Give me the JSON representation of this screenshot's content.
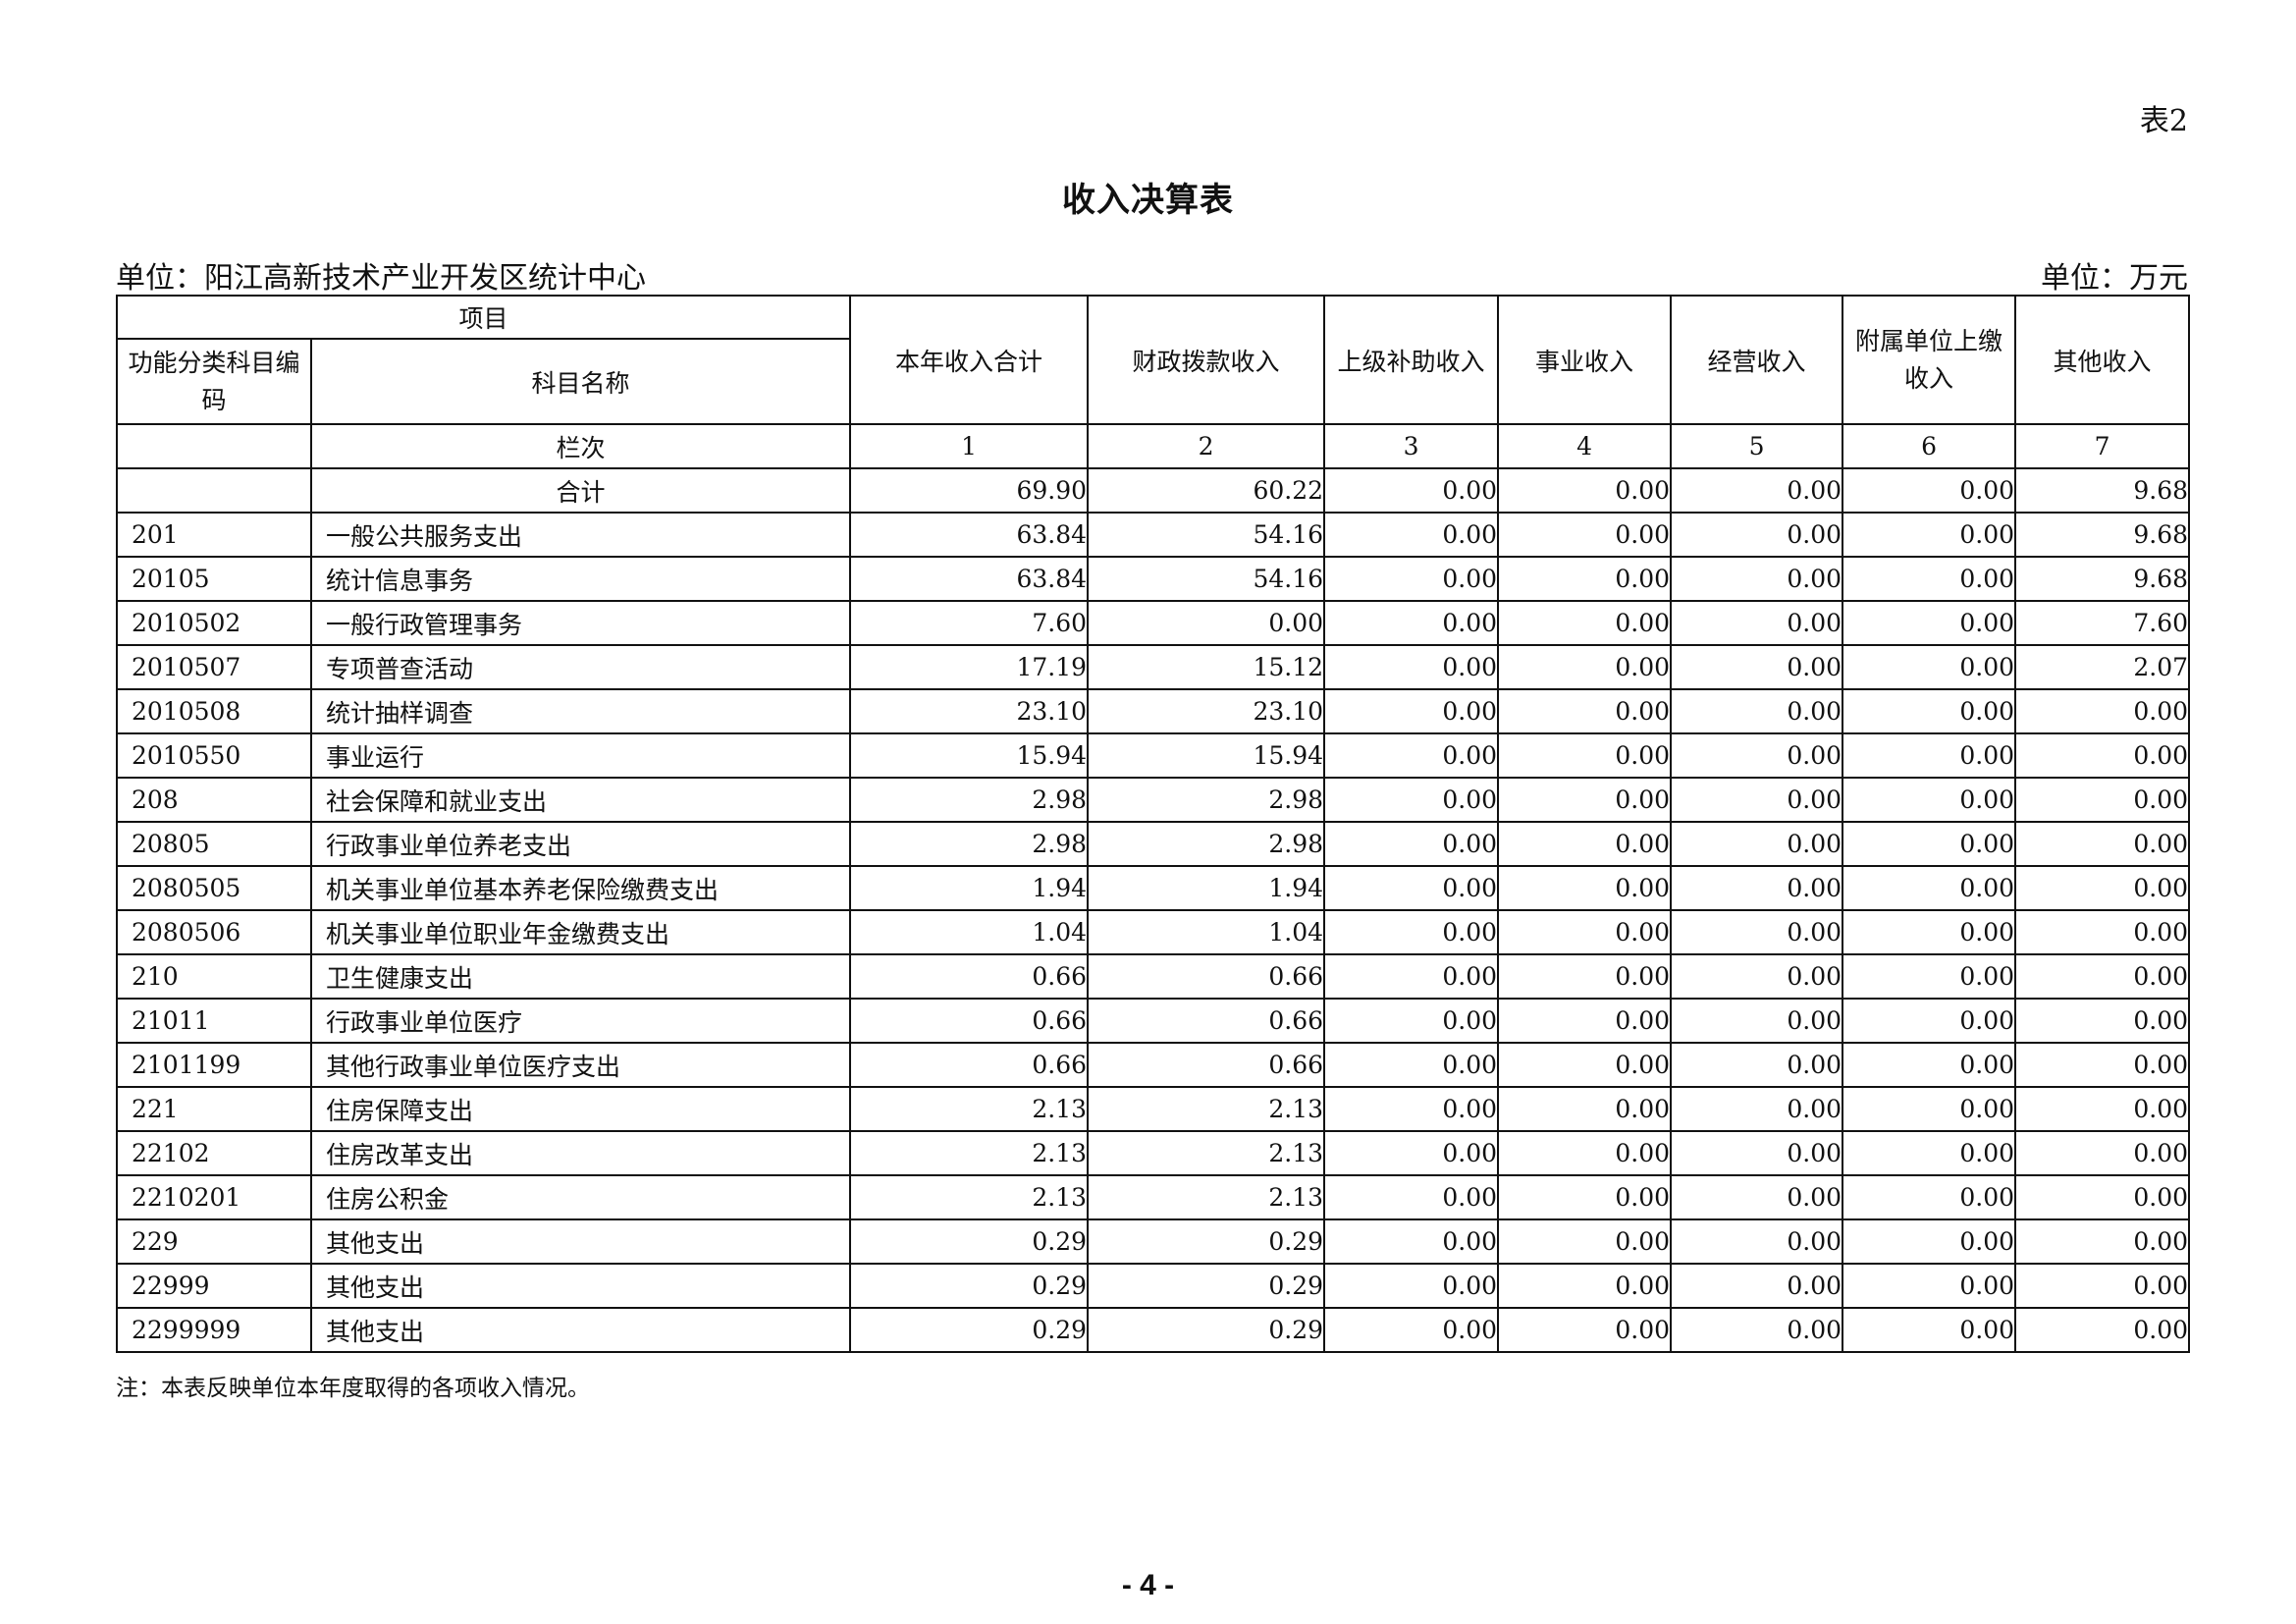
{
  "table_no": "表2",
  "title": "收入决算表",
  "unit_left": "单位：阳江高新技术产业开发区统计中心",
  "unit_right": "单位：万元",
  "header": {
    "item": "项目",
    "code": "功能分类科目编码",
    "name": "科目名称",
    "columns": [
      "本年收入合计",
      "财政拨款收入",
      "上级补助收入",
      "事业收入",
      "经营收入",
      "附属单位上缴收入",
      "其他收入"
    ],
    "index_label": "栏次",
    "index": [
      "1",
      "2",
      "3",
      "4",
      "5",
      "6",
      "7"
    ]
  },
  "total": {
    "label": "合计",
    "values": [
      "69.90",
      "60.22",
      "0.00",
      "0.00",
      "0.00",
      "0.00",
      "9.68"
    ]
  },
  "rows": [
    {
      "code": "201",
      "name": "一般公共服务支出",
      "values": [
        "63.84",
        "54.16",
        "0.00",
        "0.00",
        "0.00",
        "0.00",
        "9.68"
      ]
    },
    {
      "code": "20105",
      "name": "统计信息事务",
      "values": [
        "63.84",
        "54.16",
        "0.00",
        "0.00",
        "0.00",
        "0.00",
        "9.68"
      ]
    },
    {
      "code": "2010502",
      "name": "一般行政管理事务",
      "values": [
        "7.60",
        "0.00",
        "0.00",
        "0.00",
        "0.00",
        "0.00",
        "7.60"
      ]
    },
    {
      "code": "2010507",
      "name": "专项普查活动",
      "values": [
        "17.19",
        "15.12",
        "0.00",
        "0.00",
        "0.00",
        "0.00",
        "2.07"
      ]
    },
    {
      "code": "2010508",
      "name": "统计抽样调查",
      "values": [
        "23.10",
        "23.10",
        "0.00",
        "0.00",
        "0.00",
        "0.00",
        "0.00"
      ]
    },
    {
      "code": "2010550",
      "name": "事业运行",
      "values": [
        "15.94",
        "15.94",
        "0.00",
        "0.00",
        "0.00",
        "0.00",
        "0.00"
      ]
    },
    {
      "code": "208",
      "name": "社会保障和就业支出",
      "values": [
        "2.98",
        "2.98",
        "0.00",
        "0.00",
        "0.00",
        "0.00",
        "0.00"
      ]
    },
    {
      "code": "20805",
      "name": "行政事业单位养老支出",
      "values": [
        "2.98",
        "2.98",
        "0.00",
        "0.00",
        "0.00",
        "0.00",
        "0.00"
      ]
    },
    {
      "code": "2080505",
      "name": "机关事业单位基本养老保险缴费支出",
      "values": [
        "1.94",
        "1.94",
        "0.00",
        "0.00",
        "0.00",
        "0.00",
        "0.00"
      ]
    },
    {
      "code": "2080506",
      "name": "机关事业单位职业年金缴费支出",
      "values": [
        "1.04",
        "1.04",
        "0.00",
        "0.00",
        "0.00",
        "0.00",
        "0.00"
      ]
    },
    {
      "code": "210",
      "name": "卫生健康支出",
      "values": [
        "0.66",
        "0.66",
        "0.00",
        "0.00",
        "0.00",
        "0.00",
        "0.00"
      ]
    },
    {
      "code": "21011",
      "name": "行政事业单位医疗",
      "values": [
        "0.66",
        "0.66",
        "0.00",
        "0.00",
        "0.00",
        "0.00",
        "0.00"
      ]
    },
    {
      "code": "2101199",
      "name": "其他行政事业单位医疗支出",
      "values": [
        "0.66",
        "0.66",
        "0.00",
        "0.00",
        "0.00",
        "0.00",
        "0.00"
      ]
    },
    {
      "code": "221",
      "name": "住房保障支出",
      "values": [
        "2.13",
        "2.13",
        "0.00",
        "0.00",
        "0.00",
        "0.00",
        "0.00"
      ]
    },
    {
      "code": "22102",
      "name": "住房改革支出",
      "values": [
        "2.13",
        "2.13",
        "0.00",
        "0.00",
        "0.00",
        "0.00",
        "0.00"
      ]
    },
    {
      "code": "2210201",
      "name": "住房公积金",
      "values": [
        "2.13",
        "2.13",
        "0.00",
        "0.00",
        "0.00",
        "0.00",
        "0.00"
      ]
    },
    {
      "code": "229",
      "name": "其他支出",
      "values": [
        "0.29",
        "0.29",
        "0.00",
        "0.00",
        "0.00",
        "0.00",
        "0.00"
      ]
    },
    {
      "code": "22999",
      "name": "其他支出",
      "values": [
        "0.29",
        "0.29",
        "0.00",
        "0.00",
        "0.00",
        "0.00",
        "0.00"
      ]
    },
    {
      "code": "2299999",
      "name": "其他支出",
      "values": [
        "0.29",
        "0.29",
        "0.00",
        "0.00",
        "0.00",
        "0.00",
        "0.00"
      ]
    }
  ],
  "note": "注：本表反映单位本年度取得的各项收入情况。",
  "page_number": "- 4 -"
}
